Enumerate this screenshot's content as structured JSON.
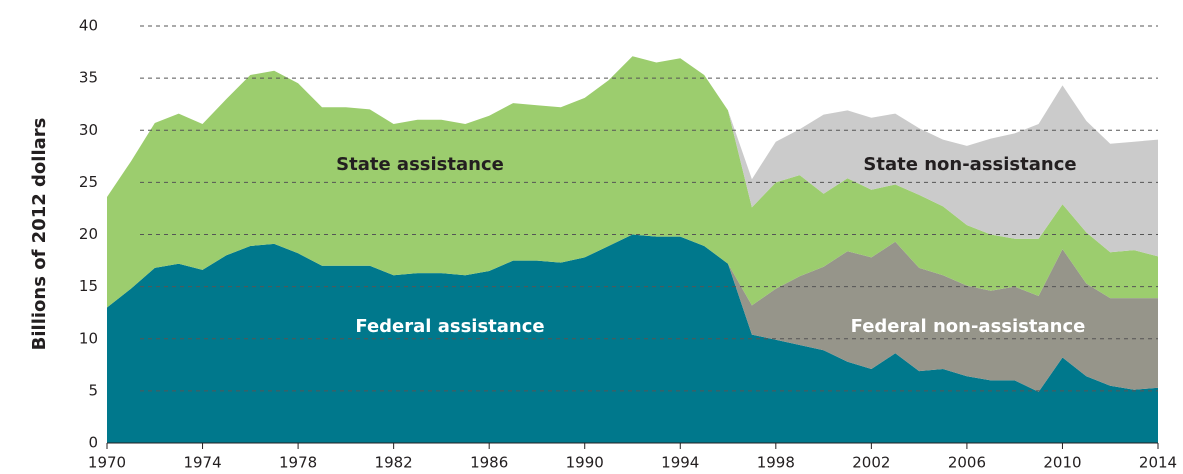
{
  "chart_data": {
    "type": "stacked_area",
    "y_label": "Billions of 2012 dollars",
    "x": [
      1970,
      1971,
      1972,
      1973,
      1974,
      1975,
      1976,
      1977,
      1978,
      1979,
      1980,
      1981,
      1982,
      1983,
      1984,
      1985,
      1986,
      1987,
      1988,
      1989,
      1990,
      1991,
      1992,
      1993,
      1994,
      1995,
      1996,
      1997,
      1998,
      1999,
      2000,
      2001,
      2002,
      2003,
      2004,
      2005,
      2006,
      2007,
      2008,
      2009,
      2010,
      2011,
      2012,
      2013,
      2014
    ],
    "series": [
      {
        "name": "Federal assistance",
        "color": "#00788c",
        "label_color": "#ffffff",
        "values": [
          13,
          14.8,
          16.8,
          17.2,
          16.6,
          18,
          18.9,
          19.1,
          18.2,
          17,
          17,
          17,
          16.1,
          16.3,
          16.3,
          16.1,
          16.5,
          17.5,
          17.5,
          17.3,
          17.8,
          18.9,
          20,
          19.8,
          19.8,
          18.9,
          17.2,
          10.4,
          9.9,
          9.4,
          8.9,
          7.8,
          7.1,
          8.6,
          6.9,
          7.1,
          6.4,
          6,
          6,
          4.9,
          8.2,
          6.4,
          5.5,
          5.1,
          5.3
        ]
      },
      {
        "name": "Federal non-assistance",
        "color": "#96958a",
        "label_color": "#ffffff",
        "values": [
          null,
          null,
          null,
          null,
          null,
          null,
          null,
          null,
          null,
          null,
          null,
          null,
          null,
          null,
          null,
          null,
          null,
          null,
          null,
          null,
          null,
          null,
          null,
          null,
          null,
          null,
          0,
          2.8,
          4.9,
          6.6,
          8.0,
          10.6,
          10.7,
          10.7,
          9.9,
          9.0,
          8.7,
          8.6,
          9.0,
          9.2,
          10.4,
          8.9,
          8.4,
          8.8,
          8.6
        ]
      },
      {
        "name": "State assistance",
        "color": "#9ccd6e",
        "label_color": "#231f20",
        "values": [
          10.6,
          12.2,
          13.9,
          14.4,
          14.0,
          15.0,
          16.4,
          16.6,
          16.3,
          15.2,
          15.2,
          15.0,
          14.5,
          14.7,
          14.7,
          14.5,
          14.9,
          15.1,
          14.9,
          14.9,
          15.3,
          15.9,
          17.1,
          16.7,
          17.1,
          16.4,
          14.7,
          9.4,
          10.2,
          9.7,
          7.0,
          7.0,
          6.5,
          5.5,
          7.0,
          6.6,
          5.8,
          5.4,
          4.6,
          5.5,
          4.3,
          4.9,
          4.4,
          4.6,
          4.0
        ]
      },
      {
        "name": "State non-assistance",
        "color": "#cbcbcb",
        "label_color": "#231f20",
        "values": [
          null,
          null,
          null,
          null,
          null,
          null,
          null,
          null,
          null,
          null,
          null,
          null,
          null,
          null,
          null,
          null,
          null,
          null,
          null,
          null,
          null,
          null,
          null,
          null,
          null,
          null,
          0,
          2.7,
          3.9,
          4.4,
          7.6,
          6.5,
          6.9,
          6.8,
          6.4,
          6.4,
          7.6,
          9.2,
          10.1,
          11.0,
          11.4,
          10.7,
          10.4,
          10.4,
          11.2
        ]
      }
    ],
    "xlim": [
      1970,
      2014
    ],
    "xticks": [
      1970,
      1974,
      1978,
      1982,
      1986,
      1990,
      1994,
      1998,
      2002,
      2006,
      2010,
      2014
    ],
    "ylim": [
      0,
      40
    ],
    "yticks": [
      0,
      5,
      10,
      15,
      20,
      25,
      30,
      35,
      40
    ],
    "grid": true
  }
}
